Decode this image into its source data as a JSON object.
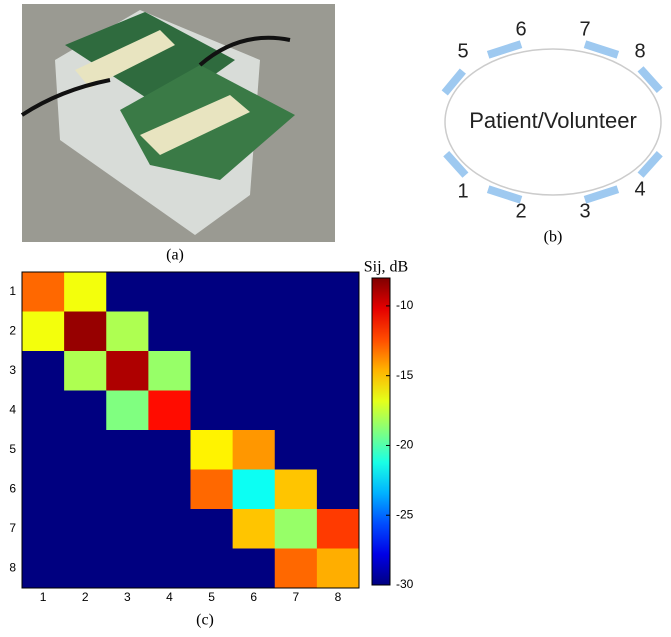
{
  "captions": {
    "a": "(a)",
    "b": "(b)",
    "c": "(c)"
  },
  "diagram": {
    "center_label": "Patient/Volunteer",
    "nodes": [
      {
        "label": "1"
      },
      {
        "label": "2"
      },
      {
        "label": "3"
      },
      {
        "label": "4"
      },
      {
        "label": "5"
      },
      {
        "label": "6"
      },
      {
        "label": "7"
      },
      {
        "label": "8"
      }
    ]
  },
  "chart_data": {
    "type": "heatmap",
    "colormap": "jet",
    "x": [
      1,
      2,
      3,
      4,
      5,
      6,
      7,
      8
    ],
    "y": [
      1,
      2,
      3,
      4,
      5,
      6,
      7,
      8
    ],
    "z": [
      [
        -13,
        -16.5,
        -30,
        -30,
        -30,
        -30,
        -30,
        -30
      ],
      [
        -16.5,
        -8.5,
        -18,
        -30,
        -30,
        -30,
        -30,
        -30
      ],
      [
        -30,
        -18,
        -9,
        -18.5,
        -30,
        -30,
        -30,
        -30
      ],
      [
        -30,
        -30,
        -19,
        -11,
        -30,
        -30,
        -30,
        -30
      ],
      [
        -30,
        -30,
        -30,
        -30,
        -16,
        -14,
        -30,
        -30
      ],
      [
        -30,
        -30,
        -30,
        -30,
        -13,
        -21.5,
        -15,
        -30
      ],
      [
        -30,
        -30,
        -30,
        -30,
        -30,
        -15,
        -18.5,
        -12
      ],
      [
        -30,
        -30,
        -30,
        -30,
        -30,
        -30,
        -13,
        -14.5
      ]
    ],
    "zlim": [
      -30,
      -8
    ],
    "zticks": [
      -10,
      -15,
      -20,
      -25,
      -30
    ],
    "colorbar_label": "Sij, dB"
  }
}
